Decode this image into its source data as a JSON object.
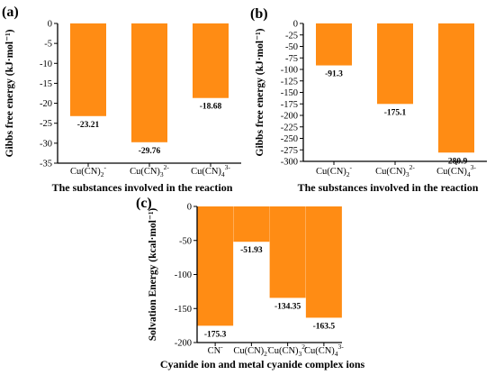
{
  "chart_data": [
    {
      "type": "bar",
      "panel_label": "(a)",
      "categories": [
        {
          "base": "Cu(CN)",
          "sub": "2",
          "sup": "-"
        },
        {
          "base": "Cu(CN)",
          "sub": "3",
          "sup": "2-"
        },
        {
          "base": "Cu(CN)",
          "sub": "4",
          "sup": "3-"
        }
      ],
      "values": [
        -23.21,
        -29.76,
        -18.68
      ],
      "value_labels": [
        "-23.21",
        "-29.76",
        "-18.68"
      ],
      "ylabel": "Gibbs free energy (kJ·mol⁻¹)",
      "xlabel": "The substances involved in the reaction",
      "ylim": [
        -35,
        0
      ],
      "yticks": [
        0,
        -5,
        -10,
        -15,
        -20,
        -25,
        -30,
        -35
      ],
      "color": "#FF8C14"
    },
    {
      "type": "bar",
      "panel_label": "(b)",
      "categories": [
        {
          "base": "Cu(CN)",
          "sub": "2",
          "sup": "-"
        },
        {
          "base": "Cu(CN)",
          "sub": "3",
          "sup": "2-"
        },
        {
          "base": "Cu(CN)",
          "sub": "4",
          "sup": "3-"
        }
      ],
      "values": [
        -91.3,
        -175.1,
        -280.9
      ],
      "value_labels": [
        "-91.3",
        "-175.1",
        "-280.9"
      ],
      "ylabel": "Gibbs free energy (kJ·mol⁻¹)",
      "xlabel": "The substances involved in the reaction",
      "ylim": [
        -300,
        0
      ],
      "yticks": [
        0,
        -25,
        -50,
        -75,
        -100,
        -125,
        -150,
        -175,
        -200,
        -225,
        -250,
        -275,
        -300
      ],
      "color": "#FF8C14"
    },
    {
      "type": "bar",
      "panel_label": "(c)",
      "categories": [
        {
          "base": "CN",
          "sub": "",
          "sup": "-"
        },
        {
          "base": "Cu(CN)",
          "sub": "2",
          "sup": "-"
        },
        {
          "base": "Cu(CN)",
          "sub": "3",
          "sup": "2-"
        },
        {
          "base": "Cu(CN)",
          "sub": "4",
          "sup": "3-"
        }
      ],
      "values": [
        -175.3,
        -51.93,
        -134.35,
        -163.5
      ],
      "value_labels": [
        "-175.3",
        "-51.93",
        "-134.35",
        "-163.5"
      ],
      "ylabel": "Solvation Energy (kcal·mol⁻¹)",
      "xlabel": "Cyanide ion and metal cyanide complex ions",
      "ylim": [
        -200,
        0
      ],
      "yticks": [
        0,
        -50,
        -100,
        -150,
        -200
      ],
      "color": "#FF8C14"
    }
  ]
}
